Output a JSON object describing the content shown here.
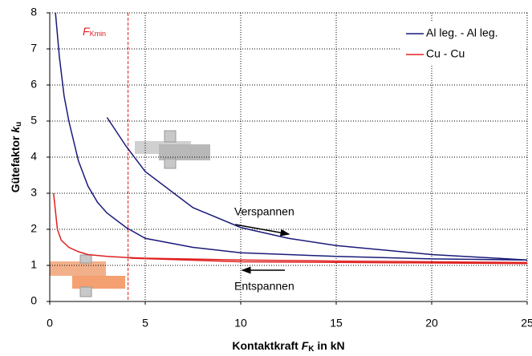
{
  "chart_data": {
    "type": "line",
    "x_label": {
      "text": "Kontaktkraft ",
      "symbol": "F",
      "subscript": "K",
      "suffix": " in kN"
    },
    "y_label": {
      "text": "Gütefaktor ",
      "symbol": "k",
      "subscript": "u"
    },
    "xlim": [
      0,
      25
    ],
    "xticks": [
      0,
      5,
      10,
      15,
      20,
      25
    ],
    "ylim": [
      0,
      8
    ],
    "yticks": [
      0,
      1,
      2,
      3,
      4,
      5,
      6,
      7,
      8
    ],
    "grid": true,
    "legend": "upper right",
    "series": [
      {
        "name": "Al leg. - Al leg.",
        "color": "#1a1a7a",
        "x": [
          0.3,
          0.5,
          0.75,
          1,
          1.5,
          2,
          2.5,
          3,
          4,
          5,
          7.5,
          10,
          15,
          20,
          25,
          null,
          3,
          4,
          5,
          7.5,
          10,
          12.5,
          15,
          20,
          25
        ],
        "values": [
          8,
          6.8,
          5.7,
          5.0,
          3.9,
          3.2,
          2.75,
          2.45,
          2.05,
          1.75,
          1.5,
          1.35,
          1.25,
          1.18,
          1.15,
          null,
          5.1,
          4.3,
          3.6,
          2.6,
          2.05,
          1.75,
          1.55,
          1.3,
          1.15
        ]
      },
      {
        "name": "Cu - Cu",
        "color": "#e02020",
        "x": [
          0.2,
          0.4,
          0.6,
          1,
          1.5,
          2,
          3,
          4,
          5,
          10,
          15,
          20,
          25,
          null,
          4.2,
          10,
          25
        ],
        "values": [
          3,
          2.0,
          1.7,
          1.5,
          1.38,
          1.3,
          1.25,
          1.22,
          1.2,
          1.15,
          1.12,
          1.1,
          1.08,
          null,
          1.2,
          1.1,
          1.05
        ]
      }
    ],
    "annotations": [
      {
        "symbol": "F",
        "subscript": "Kmin",
        "x": 4.1
      },
      {
        "text": "Verspannen"
      },
      {
        "text": "Entspannen"
      }
    ]
  }
}
